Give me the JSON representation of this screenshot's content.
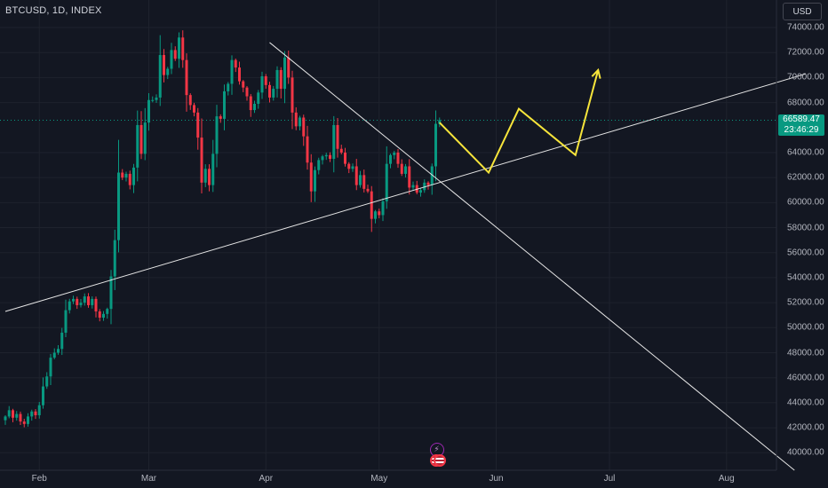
{
  "header": {
    "symbol": "BTCUSD, 1D, INDEX"
  },
  "currency_button": "USD",
  "last_price": {
    "value": "66589.47",
    "countdown": "23:46:29"
  },
  "colors": {
    "up": "#089981",
    "down": "#f23645",
    "background": "#131722",
    "trendline": "#e6e6e6",
    "projection": "#f7e53b"
  },
  "chart_data": {
    "type": "candlestick",
    "title": "",
    "yaxis": {
      "range": [
        38600,
        76200
      ],
      "ticks": [
        {
          "value": 40000,
          "label": "40000.00"
        },
        {
          "value": 42000,
          "label": "42000.00"
        },
        {
          "value": 44000,
          "label": "44000.00"
        },
        {
          "value": 46000,
          "label": "46000.00"
        },
        {
          "value": 48000,
          "label": "48000.00"
        },
        {
          "value": 50000,
          "label": "50000.00"
        },
        {
          "value": 52000,
          "label": "52000.00"
        },
        {
          "value": 54000,
          "label": "54000.00"
        },
        {
          "value": 56000,
          "label": "56000.00"
        },
        {
          "value": 58000,
          "label": "58000.00"
        },
        {
          "value": 60000,
          "label": "60000.00"
        },
        {
          "value": 62000,
          "label": "62000.00"
        },
        {
          "value": 64000,
          "label": "64000.00"
        },
        {
          "value": 68000,
          "label": "68000.00"
        },
        {
          "value": 70000,
          "label": "70000.00"
        },
        {
          "value": 72000,
          "label": "72000.00"
        },
        {
          "value": 74000,
          "label": "74000.00"
        }
      ]
    },
    "xaxis": {
      "start_date": "2024-01-23",
      "ticks": [
        {
          "date": "2024-02-01",
          "label": "Feb"
        },
        {
          "date": "2024-03-01",
          "label": "Mar"
        },
        {
          "date": "2024-04-01",
          "label": "Apr"
        },
        {
          "date": "2024-05-01",
          "label": "May"
        },
        {
          "date": "2024-06-01",
          "label": "Jun"
        },
        {
          "date": "2024-07-01",
          "label": "Jul"
        },
        {
          "date": "2024-08-01",
          "label": "Aug"
        }
      ]
    },
    "closes": [
      42900,
      43400,
      42800,
      43100,
      42500,
      42300,
      42900,
      43300,
      43000,
      43800,
      45300,
      46100,
      47600,
      48000,
      48300,
      49600,
      51400,
      52100,
      52300,
      51800,
      52000,
      52500,
      51800,
      52300,
      51300,
      50800,
      51100,
      51500,
      54100,
      57000,
      62400,
      62000,
      62300,
      61400,
      62800,
      66200,
      63900,
      66400,
      68200,
      68200,
      68400,
      71800,
      70200,
      70700,
      72200,
      71500,
      73200,
      71400,
      68600,
      67800,
      67200,
      65200,
      61600,
      62700,
      61400,
      63900,
      66900,
      66700,
      68900,
      69500,
      71400,
      70800,
      69700,
      69200,
      68500,
      67400,
      67900,
      68800,
      70100,
      69400,
      68400,
      69100,
      70600,
      69100,
      71600,
      70000,
      67200,
      66100,
      66800,
      65300,
      63200,
      60900,
      62600,
      63400,
      63700,
      63800,
      63500,
      66200,
      64300,
      64000,
      63100,
      62700,
      62900,
      61400,
      62200,
      61100,
      60900,
      58700,
      59300,
      59000,
      60100,
      63100,
      63800,
      64000,
      63100,
      62300,
      62900,
      61200,
      61400,
      60800,
      61000,
      61600,
      61400,
      62900,
      66300,
      66589.47
    ],
    "drawings": {
      "ascending_trendline": {
        "points": [
          [
            "2024-01-23",
            51300
          ],
          [
            "2024-08-22",
            70300
          ]
        ]
      },
      "descending_trendline": {
        "points": [
          [
            "2024-04-02",
            72800
          ],
          [
            "2024-08-19",
            38600
          ]
        ]
      },
      "projection": {
        "points": [
          [
            "2024-05-17",
            66400
          ],
          [
            "2024-05-30",
            62400
          ],
          [
            "2024-06-07",
            67500
          ],
          [
            "2024-06-22",
            63800
          ],
          [
            "2024-06-28",
            70600
          ]
        ]
      }
    },
    "events": [
      {
        "date": "2024-05-16",
        "value": 40300,
        "type": "flash"
      },
      {
        "date": "2024-05-16",
        "value": 39400,
        "type": "us-flag"
      },
      {
        "date": "2024-05-17",
        "value": 39400,
        "type": "us-flag"
      }
    ]
  }
}
